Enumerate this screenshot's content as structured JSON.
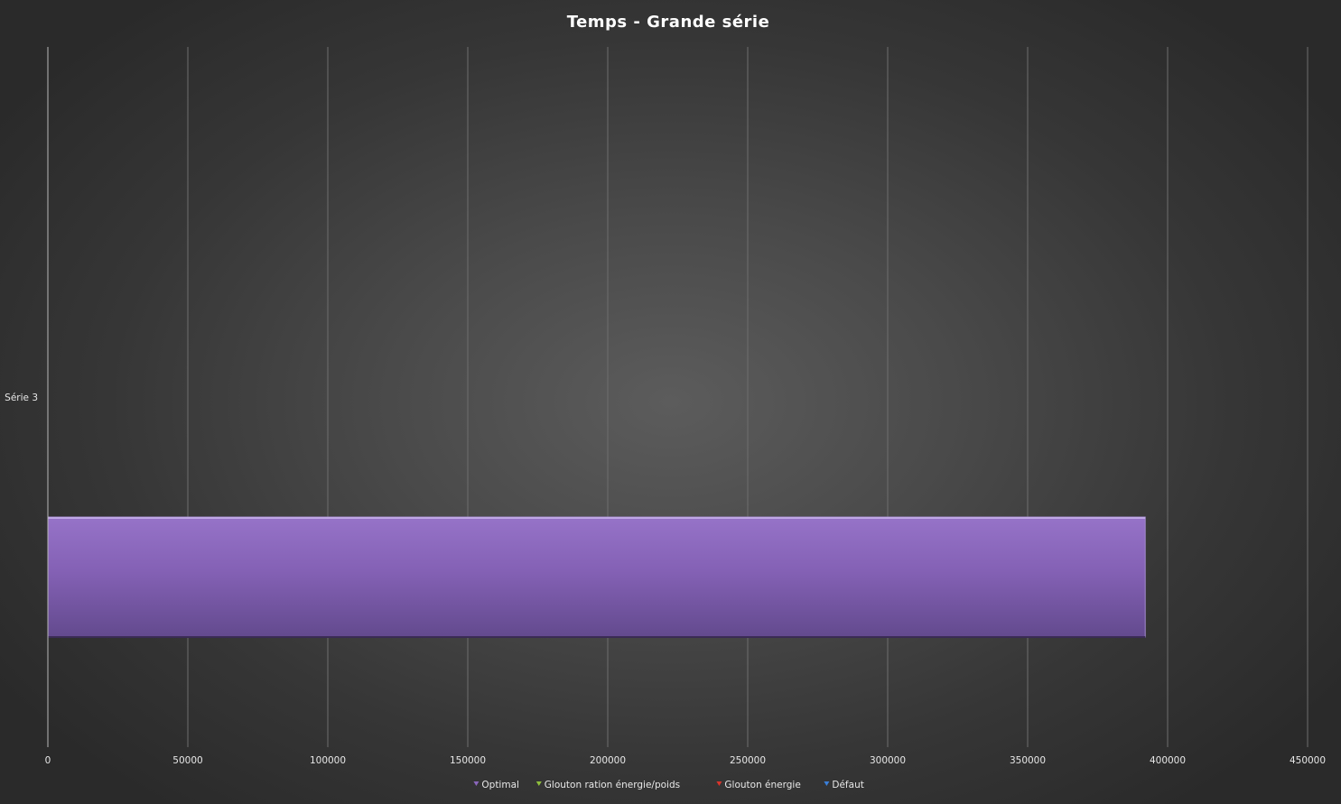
{
  "chart_data": {
    "type": "bar",
    "orientation": "horizontal",
    "title": "Temps - Grande série",
    "categories": [
      "Série 3"
    ],
    "series": [
      {
        "name": "Optimal",
        "values": [
          392000
        ],
        "color": "#8a66bb"
      },
      {
        "name": "Glouton ration énergie/poids",
        "values": [
          0
        ],
        "color": "#8fbf3c"
      },
      {
        "name": "Glouton énergie",
        "values": [
          0
        ],
        "color": "#d9342b"
      },
      {
        "name": "Défaut",
        "values": [
          0
        ],
        "color": "#3a7fd9"
      }
    ],
    "xlim": [
      0,
      450000
    ],
    "x_ticks": [
      "0",
      "50000",
      "100000",
      "150000",
      "200000",
      "250000",
      "300000",
      "350000",
      "400000",
      "450000"
    ],
    "grid": true,
    "legend_position": "bottom"
  }
}
